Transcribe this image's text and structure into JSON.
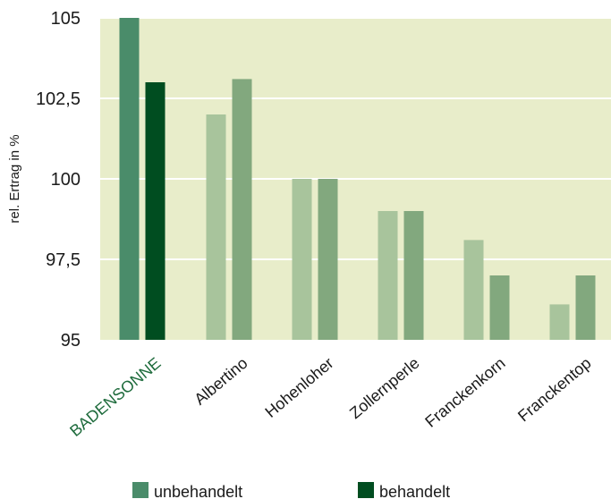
{
  "chart_data": {
    "type": "bar",
    "ylabel": "rel. Ertrag in %",
    "ylim": [
      95,
      105
    ],
    "yticks": [
      95,
      97.5,
      100,
      102.5,
      105
    ],
    "ytick_labels": [
      "95",
      "97,5",
      "100",
      "102,5",
      "105"
    ],
    "grid": true,
    "legend_position": "bottom",
    "categories": [
      "BADENSONNE",
      "Albertino",
      "Hohenloher",
      "Zollernperle",
      "Franckenkorn",
      "Franckentop"
    ],
    "category_colors": [
      "#1e6b3c",
      "#1a1a1a",
      "#1a1a1a",
      "#1a1a1a",
      "#1a1a1a",
      "#1a1a1a"
    ],
    "series": [
      {
        "name": "unbehandelt",
        "values": [
          105,
          102,
          100,
          99,
          98.1,
          96.1
        ],
        "legend_color": "#4a8c6a",
        "bar_colors": [
          "#4a8c6a",
          "#a8c49c",
          "#a8c49c",
          "#a8c49c",
          "#a8c49c",
          "#a8c49c"
        ]
      },
      {
        "name": "behandelt",
        "values": [
          103,
          103.1,
          100,
          99,
          97,
          97
        ],
        "legend_color": "#004d20",
        "bar_colors": [
          "#004d20",
          "#82a87e",
          "#82a87e",
          "#82a87e",
          "#82a87e",
          "#82a87e"
        ]
      }
    ],
    "plot_background": "#e8edca",
    "grid_color": "#ffffff"
  }
}
